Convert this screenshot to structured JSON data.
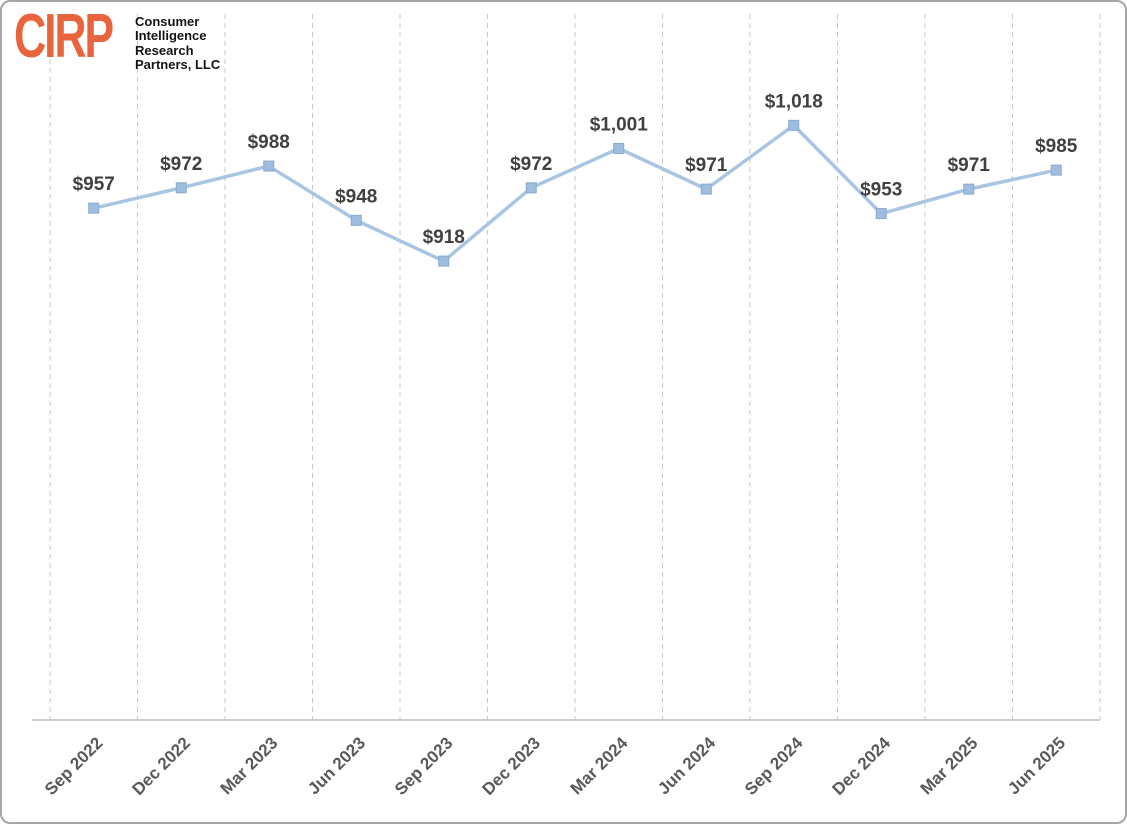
{
  "logo": {
    "brand": "CIRP",
    "brand_color": "#E8643C",
    "subtitle_lines": [
      "Consumer",
      "Intelligence",
      "Research",
      "Partners, LLC"
    ]
  },
  "chart_data": {
    "type": "line",
    "title": "",
    "categories": [
      "Sep 2022",
      "Dec 2022",
      "Mar 2023",
      "Jun 2023",
      "Sep 2023",
      "Dec 2023",
      "Mar 2024",
      "Jun 2024",
      "Sep 2024",
      "Dec 2024",
      "Mar 2025",
      "Jun 2025"
    ],
    "values": [
      957,
      972,
      988,
      948,
      918,
      972,
      1001,
      971,
      1018,
      953,
      971,
      985
    ],
    "data_labels": [
      "$957",
      "$972",
      "$988",
      "$948",
      "$918",
      "$972",
      "$1,001",
      "$971",
      "$1,018",
      "$953",
      "$971",
      "$985"
    ],
    "ylim": [
      580,
      1100
    ],
    "grid": "vertical-dashed",
    "legend": "none",
    "colors": {
      "line": "#A8C5E4",
      "marker_fill": "#9FBEDF",
      "marker_stroke": "#89A9CE",
      "data_label": "#404040",
      "axis_label": "#595959",
      "gridline": "#C9C9C9",
      "axis_line": "#BFBFBF"
    }
  }
}
